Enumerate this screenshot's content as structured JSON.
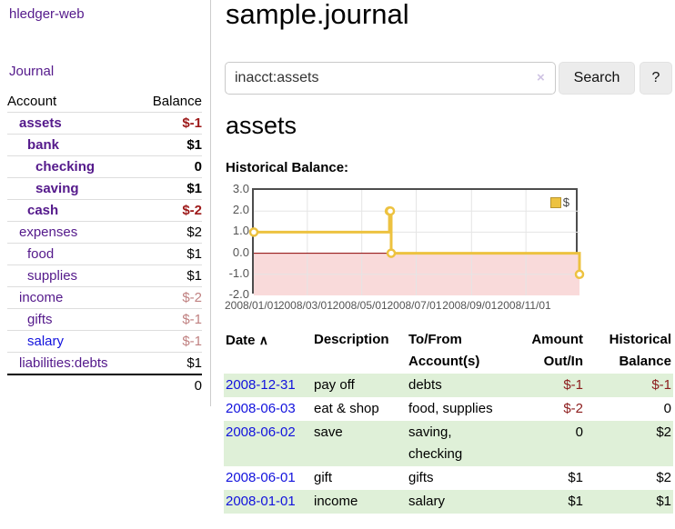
{
  "sidebar": {
    "brand": "hledger-web",
    "nav": {
      "journal": "Journal"
    },
    "accounts_table": {
      "headers": {
        "account": "Account",
        "balance": "Balance"
      },
      "rows": [
        {
          "name": "assets",
          "balance": "$-1",
          "depth": 1,
          "in_account": true,
          "tone": "negative-strong"
        },
        {
          "name": "bank",
          "balance": "$1",
          "depth": 2,
          "in_account": true,
          "tone": "normal"
        },
        {
          "name": "checking",
          "balance": "0",
          "depth": 3,
          "in_account": true,
          "tone": "normal"
        },
        {
          "name": "saving",
          "balance": "$1",
          "depth": 3,
          "in_account": true,
          "tone": "normal"
        },
        {
          "name": "cash",
          "balance": "$-2",
          "depth": 2,
          "in_account": true,
          "tone": "negative-strong"
        },
        {
          "name": "expenses",
          "balance": "$2",
          "depth": 1,
          "in_account": false,
          "tone": "normal"
        },
        {
          "name": "food",
          "balance": "$1",
          "depth": 2,
          "in_account": false,
          "tone": "normal"
        },
        {
          "name": "supplies",
          "balance": "$1",
          "depth": 2,
          "in_account": false,
          "tone": "normal"
        },
        {
          "name": "income",
          "balance": "$-2",
          "depth": 1,
          "in_account": false,
          "tone": "negative-soft"
        },
        {
          "name": "gifts",
          "balance": "$-1",
          "depth": 2,
          "in_account": false,
          "tone": "negative-soft"
        },
        {
          "name": "salary",
          "balance": "$-1",
          "depth": 2,
          "in_account": false,
          "tone": "negative-soft",
          "unvisited": true
        },
        {
          "name": "liabilities:debts",
          "balance": "$1",
          "depth": 1,
          "in_account": false,
          "tone": "normal"
        }
      ],
      "total": "0"
    }
  },
  "main": {
    "title": "sample.journal",
    "search": {
      "value": "inacct:assets",
      "clear_icon": "×",
      "search_button": "Search",
      "help_button": "?"
    },
    "account_heading": "assets",
    "section_label": "Historical Balance:"
  },
  "chart_data": {
    "type": "line",
    "step": true,
    "title": "Historical Balance",
    "series": [
      {
        "name": "$",
        "color": "#edc240",
        "points": [
          [
            "2008-01-01",
            1
          ],
          [
            "2008-06-01",
            2
          ],
          [
            "2008-06-02",
            2
          ],
          [
            "2008-06-03",
            0
          ],
          [
            "2008-12-31",
            -1
          ]
        ]
      }
    ],
    "x_range": [
      "2008-01-01",
      "2008-12-31"
    ],
    "x_tick_labels": [
      "2008/01/01",
      "2008/03/01",
      "2008/05/01",
      "2008/07/01",
      "2008/09/01",
      "2008/11/01"
    ],
    "y_tick_labels": [
      "3.0",
      "2.0",
      "1.0",
      "0.0",
      "-1.0",
      "-2.0"
    ],
    "ylim": [
      -2,
      3
    ],
    "grid": true,
    "legend_position": "top-right",
    "legend_label": "$",
    "marker_fill": "#ffffff",
    "grid_color": "#e5e5e5",
    "zero_line_color": "#8b0000",
    "negative_region_color": "#f9dada",
    "axis_label_color": "#545454",
    "border_color": "#4d4d4d"
  },
  "register": {
    "headers": {
      "date": "Date",
      "sort_icon": "∧",
      "description": "Description",
      "accounts": "To/From Account(s)",
      "amount": "Amount Out/In",
      "balance": "Historical Balance"
    },
    "rows": [
      {
        "date": "2008-12-31",
        "description": "pay off",
        "accounts": "debts",
        "amount": "$-1",
        "amount_negative": true,
        "balance": "$-1",
        "balance_negative": true,
        "highlighted": true
      },
      {
        "date": "2008-06-03",
        "description": "eat & shop",
        "accounts": "food, supplies",
        "amount": "$-2",
        "amount_negative": true,
        "balance": "0",
        "balance_negative": false,
        "highlighted": false
      },
      {
        "date": "2008-06-02",
        "description": "save",
        "accounts": "saving, checking",
        "amount": "0",
        "amount_negative": false,
        "balance": "$2",
        "balance_negative": false,
        "highlighted": true
      },
      {
        "date": "2008-06-01",
        "description": "gift",
        "accounts": "gifts",
        "amount": "$1",
        "amount_negative": false,
        "balance": "$2",
        "balance_negative": false,
        "highlighted": false
      },
      {
        "date": "2008-01-01",
        "description": "income",
        "accounts": "salary",
        "amount": "$1",
        "amount_negative": false,
        "balance": "$1",
        "balance_negative": false,
        "highlighted": true
      }
    ]
  },
  "colors": {
    "accent_purple": "#54198b",
    "link_blue": "#1212dd",
    "negative_strong": "#9d1919",
    "negative_soft": "#c08181",
    "row_highlight_green": "#dff0d8",
    "series_yellow": "#edc240"
  }
}
